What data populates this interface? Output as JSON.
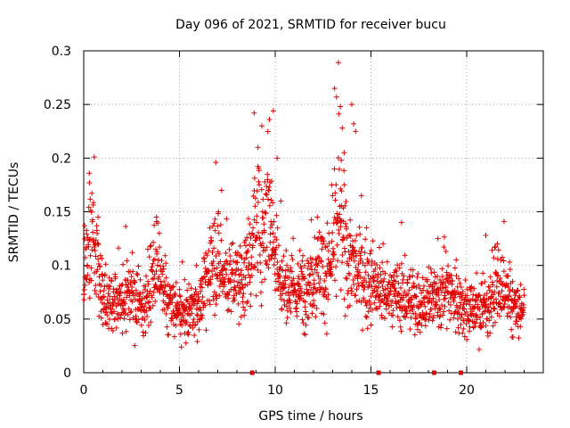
{
  "chart_data": {
    "type": "scatter",
    "marker": "+",
    "title": "Day 096 of 2021, SRMTID for receiver bucu",
    "xlabel": "GPS time / hours",
    "ylabel": "SRMTID / TECUs",
    "xlim": [
      0,
      24
    ],
    "ylim": [
      0,
      0.3
    ],
    "xticks": [
      0,
      5,
      10,
      15,
      20
    ],
    "xtick_labels": [
      "0",
      "5",
      "10",
      "15",
      "20"
    ],
    "yticks": [
      0,
      0.05,
      0.1,
      0.15,
      0.2,
      0.25,
      0.3
    ],
    "ytick_labels": [
      "0",
      "0.05",
      "0.1",
      "0.15",
      "0.2",
      "0.25",
      "0.3"
    ],
    "grid": true,
    "series_color": "#e00000",
    "data_gap_markers_x": [
      8.8,
      15.4,
      18.3,
      19.7
    ],
    "trend": [
      [
        0.0,
        0.07
      ],
      [
        0.2,
        0.12
      ],
      [
        0.5,
        0.13
      ],
      [
        0.8,
        0.09
      ],
      [
        1.2,
        0.065
      ],
      [
        2.0,
        0.07
      ],
      [
        2.5,
        0.075
      ],
      [
        3.0,
        0.06
      ],
      [
        3.5,
        0.08
      ],
      [
        3.8,
        0.1
      ],
      [
        4.2,
        0.07
      ],
      [
        5.0,
        0.055
      ],
      [
        5.5,
        0.055
      ],
      [
        6.2,
        0.07
      ],
      [
        6.8,
        0.11
      ],
      [
        7.3,
        0.09
      ],
      [
        8.0,
        0.085
      ],
      [
        8.5,
        0.09
      ],
      [
        9.0,
        0.14
      ],
      [
        9.3,
        0.13
      ],
      [
        9.6,
        0.16
      ],
      [
        10.0,
        0.12
      ],
      [
        10.3,
        0.08
      ],
      [
        11.0,
        0.075
      ],
      [
        11.8,
        0.085
      ],
      [
        12.3,
        0.1
      ],
      [
        12.8,
        0.09
      ],
      [
        13.3,
        0.14
      ],
      [
        13.8,
        0.11
      ],
      [
        14.3,
        0.09
      ],
      [
        15.0,
        0.085
      ],
      [
        15.5,
        0.075
      ],
      [
        16.5,
        0.07
      ],
      [
        17.5,
        0.065
      ],
      [
        18.5,
        0.07
      ],
      [
        19.0,
        0.08
      ],
      [
        19.4,
        0.07
      ],
      [
        20.0,
        0.06
      ],
      [
        21.0,
        0.06
      ],
      [
        21.5,
        0.08
      ],
      [
        22.0,
        0.07
      ],
      [
        22.5,
        0.06
      ],
      [
        23.0,
        0.055
      ]
    ],
    "spikes": [
      [
        0.05,
        0.137
      ],
      [
        0.3,
        0.177
      ],
      [
        0.55,
        0.201
      ],
      [
        0.75,
        0.145
      ],
      [
        3.8,
        0.145
      ],
      [
        6.9,
        0.196
      ],
      [
        7.2,
        0.17
      ],
      [
        8.9,
        0.242
      ],
      [
        9.1,
        0.21
      ],
      [
        9.3,
        0.23
      ],
      [
        9.7,
        0.236
      ],
      [
        9.9,
        0.244
      ],
      [
        10.1,
        0.2
      ],
      [
        10.3,
        0.16
      ],
      [
        12.2,
        0.145
      ],
      [
        12.8,
        0.13
      ],
      [
        13.1,
        0.265
      ],
      [
        13.2,
        0.257
      ],
      [
        13.3,
        0.289
      ],
      [
        13.4,
        0.248
      ],
      [
        13.5,
        0.228
      ],
      [
        13.45,
        0.198
      ],
      [
        13.6,
        0.205
      ],
      [
        14.0,
        0.25
      ],
      [
        14.1,
        0.232
      ],
      [
        14.2,
        0.225
      ],
      [
        14.5,
        0.165
      ],
      [
        16.6,
        0.14
      ],
      [
        18.5,
        0.125
      ],
      [
        21.0,
        0.128
      ],
      [
        21.6,
        0.12
      ],
      [
        21.95,
        0.141
      ],
      [
        22.4,
        0.085
      ]
    ],
    "time_range_hours": [
      0,
      23.0
    ],
    "samples": 1900
  }
}
